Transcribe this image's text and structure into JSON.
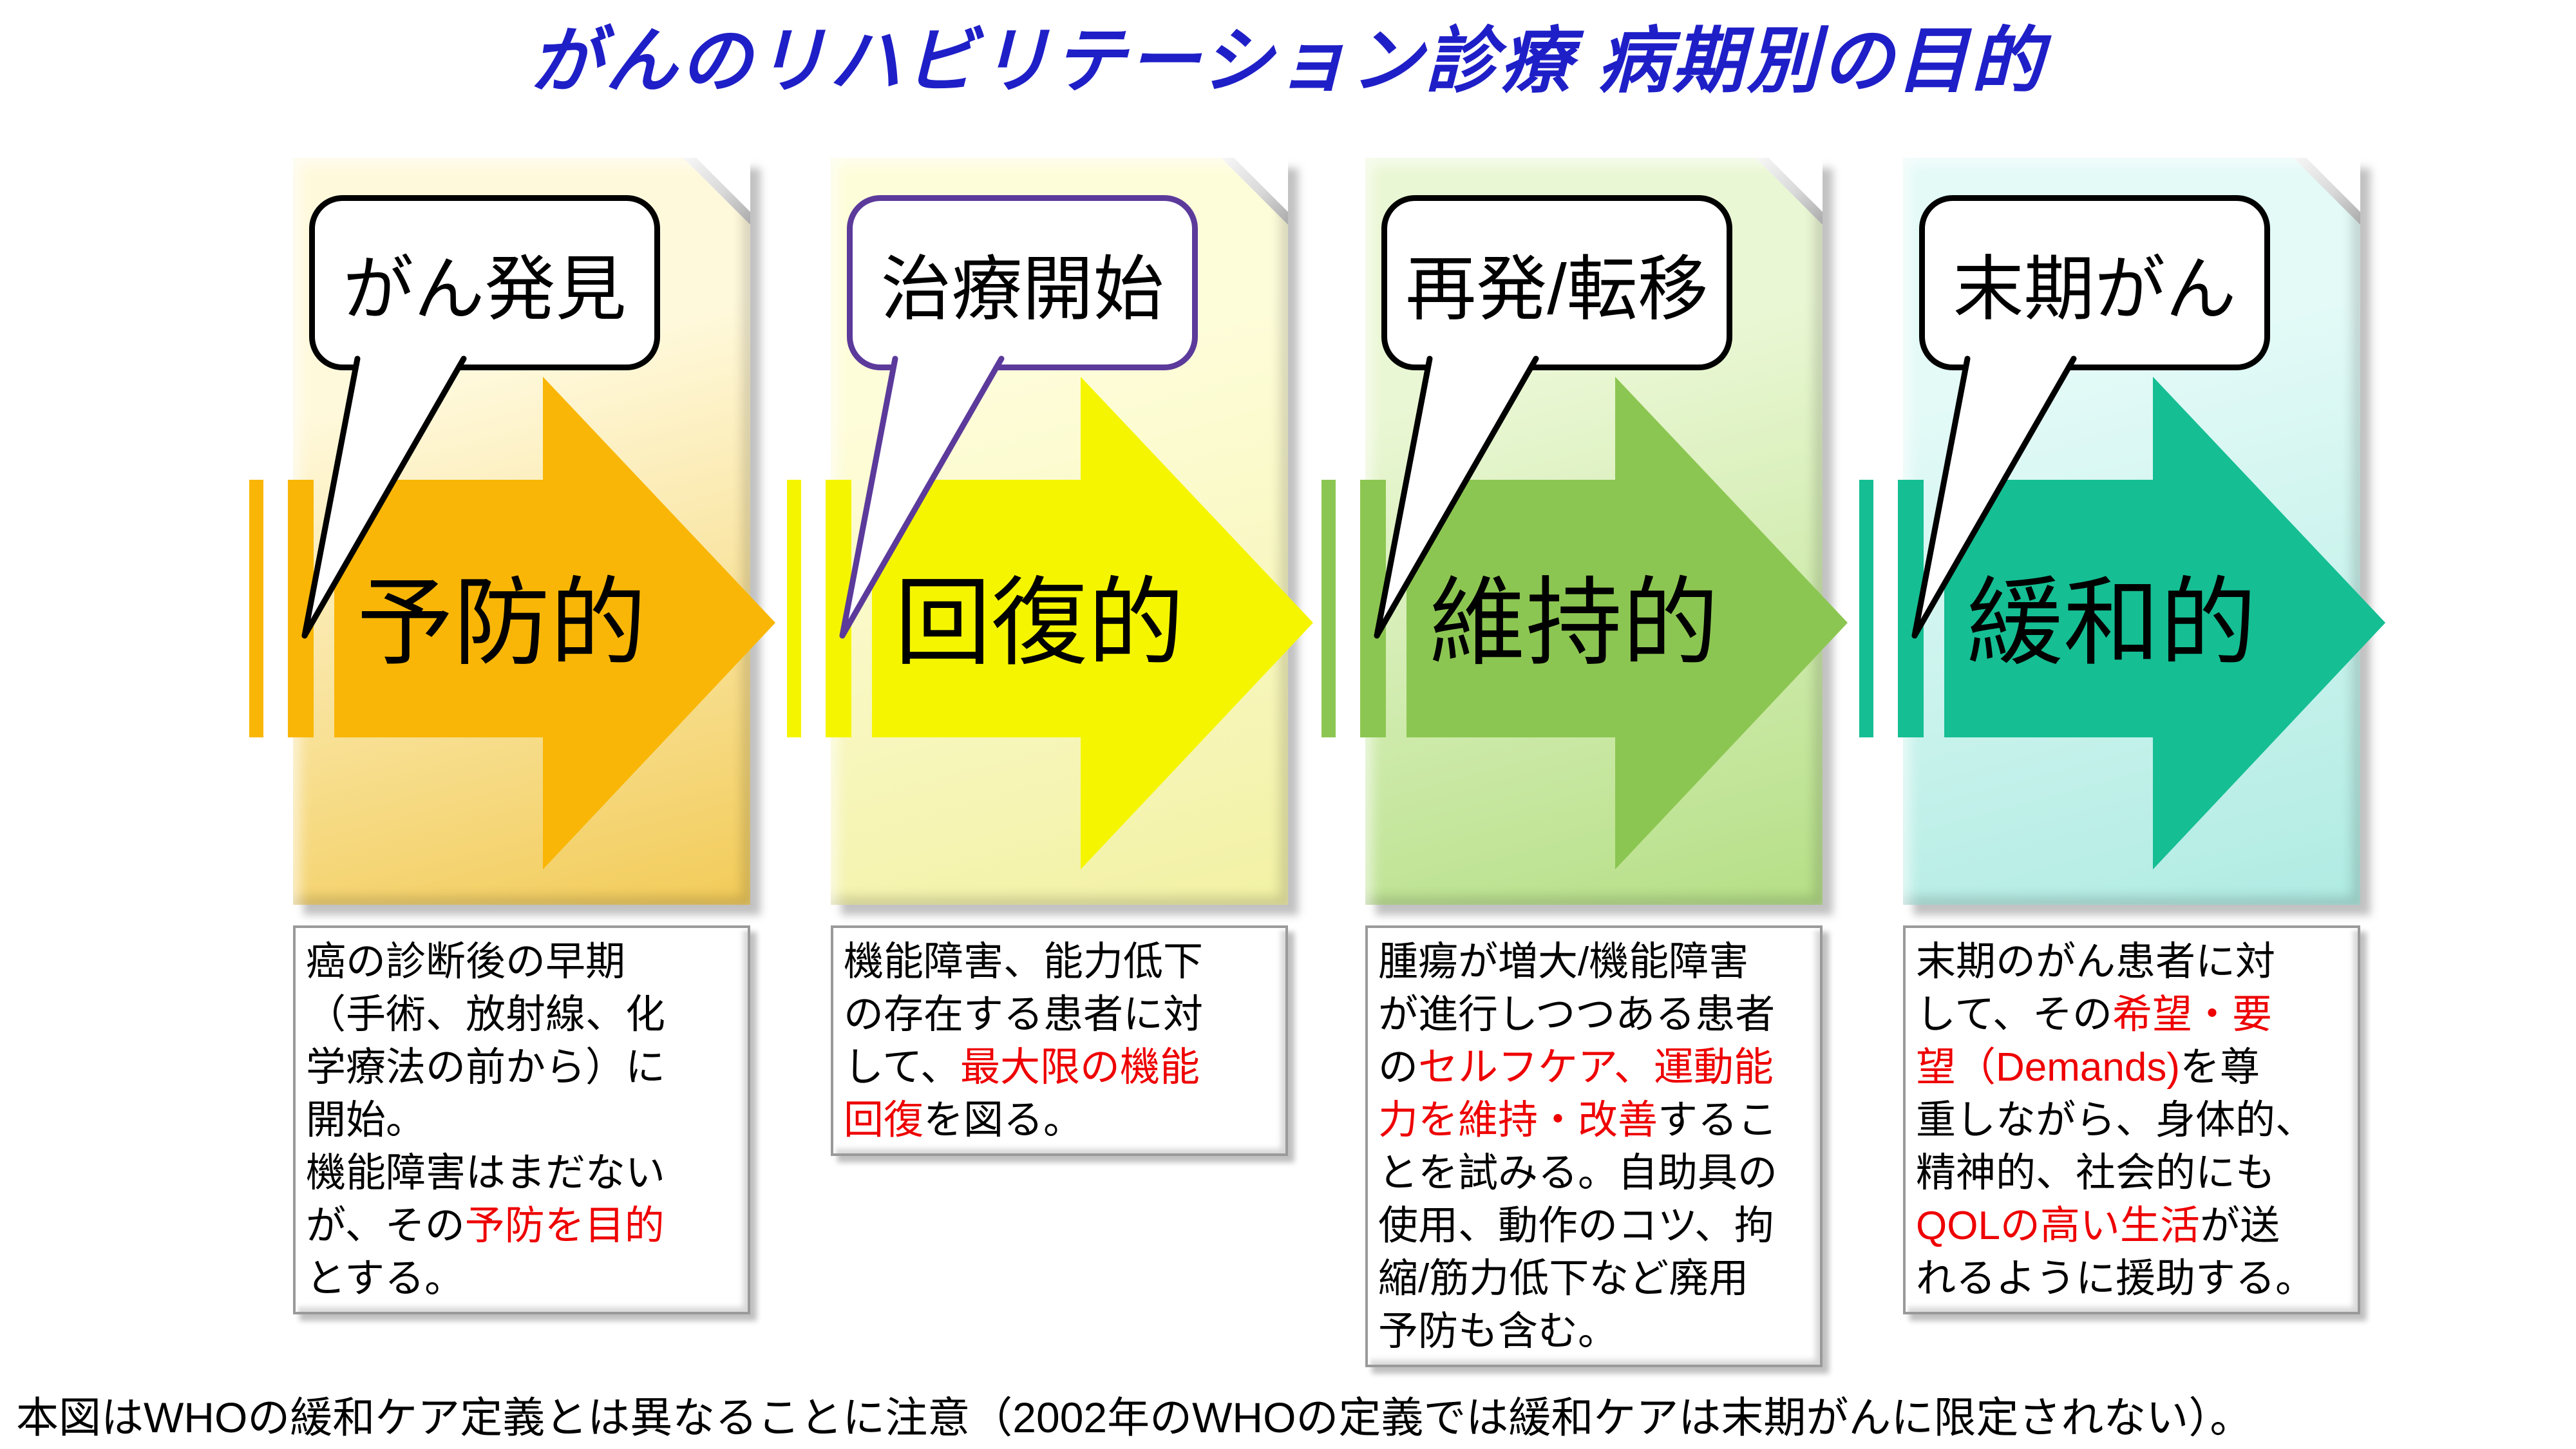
{
  "title": {
    "text": "がんのリハビリテーション診療 病期別の目的",
    "color": "#1F1FC8"
  },
  "footnote": "本図はWHOの緩和ケア定義とは異なることに注意（2002年のWHOの定義では緩和ケアは末期がんに限定されない）。",
  "colors": {
    "red_text": "#EE0000",
    "black_text": "#000000",
    "callout_fill": "#FFFFFF",
    "box_fill": "#FFFFFF"
  },
  "panels": [
    {
      "stage": "preventive",
      "callout_label": "がん発見",
      "callout_border": "#000000",
      "arrow_label": "予防的",
      "arrow_color": "#F9B606",
      "bg_from": "#FFF9DC",
      "bg_to": "#F2CB58",
      "box_lines": [
        [
          {
            "t": "癌の診断後の早期"
          }
        ],
        [
          {
            "t": "（手術、放射線、化"
          }
        ],
        [
          {
            "t": "学療法の前から）に"
          }
        ],
        [
          {
            "t": "開始。"
          }
        ],
        [
          {
            "t": "機能障害はまだない"
          }
        ],
        [
          {
            "t": "が、その"
          },
          {
            "t": "予防を目的",
            "red": true
          }
        ],
        [
          {
            "t": "とする。"
          }
        ]
      ]
    },
    {
      "stage": "restorative",
      "callout_label": "治療開始",
      "callout_border": "#5B3A9B",
      "arrow_label": "回復的",
      "arrow_color": "#F5F500",
      "bg_from": "#FEFDDA",
      "bg_to": "#F2F1A4",
      "box_lines": [
        [
          {
            "t": "機能障害、能力低下"
          }
        ],
        [
          {
            "t": "の存在する患者に対"
          }
        ],
        [
          {
            "t": "して、"
          },
          {
            "t": "最大限の機能",
            "red": true
          }
        ],
        [
          {
            "t": "回復",
            "red": true
          },
          {
            "t": "を図る。"
          }
        ]
      ]
    },
    {
      "stage": "maintenance",
      "callout_label": "再発/転移",
      "callout_border": "#000000",
      "arrow_label": "維持的",
      "arrow_color": "#8CC652",
      "bg_from": "#EAF7D4",
      "bg_to": "#B5DF86",
      "box_lines": [
        [
          {
            "t": "腫瘍が増大/機能障害"
          }
        ],
        [
          {
            "t": "が進行しつつある患者"
          }
        ],
        [
          {
            "t": "の"
          },
          {
            "t": "セルフケア、運動能",
            "red": true
          }
        ],
        [
          {
            "t": "力を維持・改善",
            "red": true
          },
          {
            "t": "するこ"
          }
        ],
        [
          {
            "t": "とを試みる。自助具の"
          }
        ],
        [
          {
            "t": "使用、動作のコツ、拘"
          }
        ],
        [
          {
            "t": "縮/筋力低下など廃用"
          }
        ],
        [
          {
            "t": "予防も含む。"
          }
        ]
      ]
    },
    {
      "stage": "palliative",
      "callout_label": "末期がん",
      "callout_border": "#000000",
      "arrow_label": "緩和的",
      "arrow_color": "#15BE93",
      "bg_from": "#E3FAF7",
      "bg_to": "#AFEBE2",
      "box_lines": [
        [
          {
            "t": "末期のがん患者に対"
          }
        ],
        [
          {
            "t": "して、その"
          },
          {
            "t": "希望・要",
            "red": true
          }
        ],
        [
          {
            "t": "望（Demands)",
            "red": true
          },
          {
            "t": "を尊"
          }
        ],
        [
          {
            "t": "重しながら、身体的、"
          }
        ],
        [
          {
            "t": "精神的、社会的にも"
          }
        ],
        [
          {
            "t": "QOLの高い生活",
            "red": true
          },
          {
            "t": "が送"
          }
        ],
        [
          {
            "t": "れるように援助する。"
          }
        ]
      ]
    }
  ]
}
